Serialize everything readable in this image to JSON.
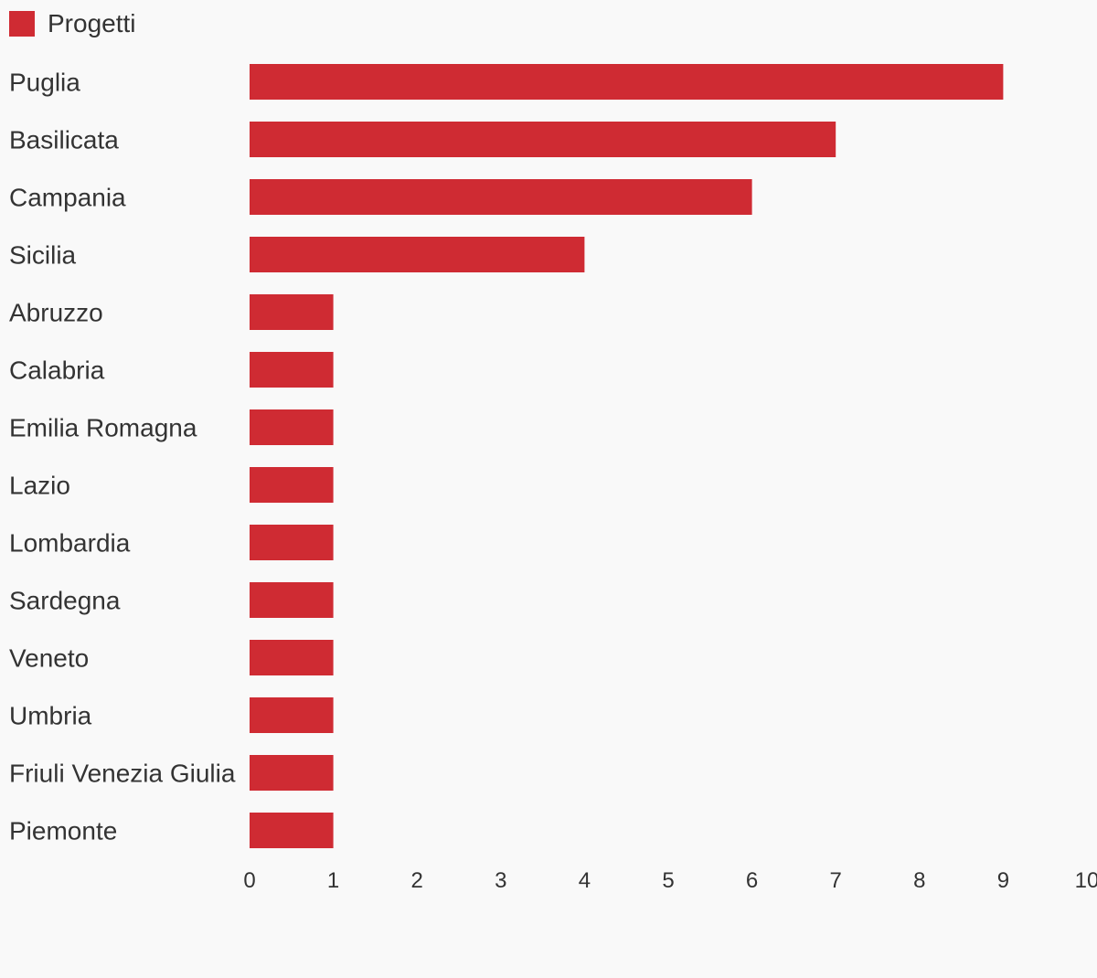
{
  "chart_data": {
    "type": "bar",
    "orientation": "horizontal",
    "categories": [
      "Puglia",
      "Basilicata",
      "Campania",
      "Sicilia",
      "Abruzzo",
      "Calabria",
      "Emilia Romagna",
      "Lazio",
      "Lombardia",
      "Sardegna",
      "Veneto",
      "Umbria",
      "Friuli Venezia Giulia",
      "Piemonte"
    ],
    "series": [
      {
        "name": "Progetti",
        "color": "#cf2b33",
        "values": [
          9,
          7,
          6,
          4,
          1,
          1,
          1,
          1,
          1,
          1,
          1,
          1,
          1,
          1
        ]
      }
    ],
    "xlim": [
      0,
      10
    ],
    "xticks": [
      "0",
      "1",
      "2",
      "3",
      "4",
      "5",
      "6",
      "7",
      "8",
      "9",
      "10"
    ],
    "legend_position": "top-left",
    "grid": false
  }
}
